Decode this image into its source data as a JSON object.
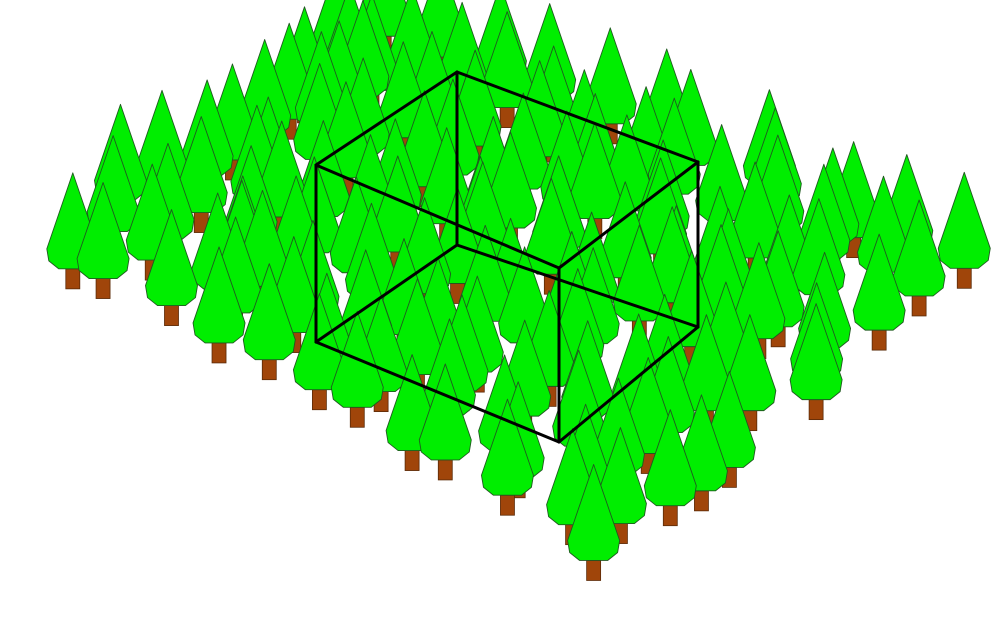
{
  "scene": {
    "title": "",
    "description_visible": false,
    "tree_count": 150,
    "tree_icon": "tree-icon",
    "box_icon": "wireframe-box-icon",
    "colors": {
      "background": "#ffffff",
      "tree_crown": "#00ee00",
      "tree_trunk": "#a0450a",
      "box_edges": "#000000"
    }
  }
}
